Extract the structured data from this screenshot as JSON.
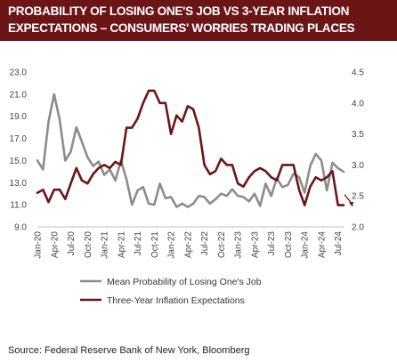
{
  "header": {
    "title_line1": "PROBABILITY OF LOSING ONE'S JOB VS 3-YEAR INFLATION",
    "title_line2": "EXPECTATIONS – CONSUMERS' WORRIES TRADING PLACES",
    "background": "#6b1516"
  },
  "footer": {
    "source": "Source:  Federal Reserve Bank of New York, Bloomberg"
  },
  "chart_data": {
    "type": "line",
    "title": "",
    "xlabel": "",
    "ylabel": "",
    "grid": false,
    "legend_position": "bottom",
    "x_tick_labels": [
      "Jan-20",
      "Apr-20",
      "Jul-20",
      "Oct-20",
      "Jan-21",
      "Apr-21",
      "Jul-21",
      "Oct-21",
      "Jan-22",
      "Apr-22",
      "Jul-22",
      "Oct-22",
      "Jan-23",
      "Apr-23",
      "Jul-23",
      "Oct-23",
      "Jan-24",
      "Apr-24",
      "Jul-24"
    ],
    "y_left": {
      "ticks": [
        "9.0",
        "11.0",
        "13.0",
        "15.0",
        "17.0",
        "19.0",
        "21.0",
        "23.0"
      ],
      "range": [
        9,
        23
      ]
    },
    "y_right": {
      "ticks": [
        "2.0",
        "2.5",
        "3.0",
        "3.5",
        "4.0",
        "4.5"
      ],
      "range": [
        2.0,
        4.5
      ]
    },
    "x": [
      "Jan-20",
      "Feb-20",
      "Mar-20",
      "Apr-20",
      "May-20",
      "Jun-20",
      "Jul-20",
      "Aug-20",
      "Sep-20",
      "Oct-20",
      "Nov-20",
      "Dec-20",
      "Jan-21",
      "Feb-21",
      "Mar-21",
      "Apr-21",
      "May-21",
      "Jun-21",
      "Jul-21",
      "Aug-21",
      "Sep-21",
      "Oct-21",
      "Nov-21",
      "Dec-21",
      "Jan-22",
      "Feb-22",
      "Mar-22",
      "Apr-22",
      "May-22",
      "Jun-22",
      "Jul-22",
      "Aug-22",
      "Sep-22",
      "Oct-22",
      "Nov-22",
      "Dec-22",
      "Jan-23",
      "Feb-23",
      "Mar-23",
      "Apr-23",
      "May-23",
      "Jun-23",
      "Jul-23",
      "Aug-23",
      "Sep-23",
      "Oct-23",
      "Nov-23",
      "Dec-23",
      "Jan-24",
      "Feb-24",
      "Mar-24",
      "Apr-24",
      "May-24",
      "Jun-24",
      "Jul-24",
      "Aug-24"
    ],
    "series": [
      {
        "name": "Mean Probability of Losing One's Job",
        "axis": "left",
        "color": "#8c8c8c",
        "values": [
          15.0,
          14.2,
          18.5,
          21.0,
          18.7,
          15.0,
          15.8,
          18.0,
          16.7,
          15.3,
          14.5,
          14.9,
          13.7,
          14.2,
          13.2,
          15.0,
          13.3,
          11.0,
          12.3,
          12.6,
          11.1,
          11.0,
          12.9,
          11.6,
          11.7,
          10.8,
          11.1,
          10.8,
          11.1,
          11.8,
          11.7,
          11.1,
          11.5,
          12.0,
          11.8,
          12.4,
          11.8,
          11.7,
          11.3,
          12.0,
          10.9,
          12.9,
          11.8,
          13.4,
          12.6,
          12.8,
          13.8,
          13.5,
          12.1,
          14.5,
          15.6,
          15.0,
          12.3,
          14.8,
          14.3,
          14.0
        ]
      },
      {
        "name": "Three-Year Inflation Expectations",
        "axis": "right",
        "color": "#6b1516",
        "values": [
          2.55,
          2.6,
          2.4,
          2.6,
          2.6,
          2.45,
          2.7,
          2.95,
          2.75,
          2.7,
          2.85,
          2.95,
          3.0,
          2.95,
          3.05,
          3.0,
          3.6,
          3.6,
          3.75,
          4.0,
          4.2,
          4.2,
          4.0,
          4.0,
          3.5,
          3.8,
          3.7,
          3.95,
          3.9,
          3.6,
          3.0,
          2.85,
          2.9,
          3.1,
          3.0,
          3.0,
          2.7,
          2.65,
          2.8,
          2.9,
          2.95,
          2.9,
          2.8,
          2.75,
          3.0,
          3.0,
          3.0,
          2.6,
          2.35,
          2.65,
          2.8,
          2.75,
          2.8,
          2.9,
          2.35,
          2.35
        ]
      }
    ]
  }
}
